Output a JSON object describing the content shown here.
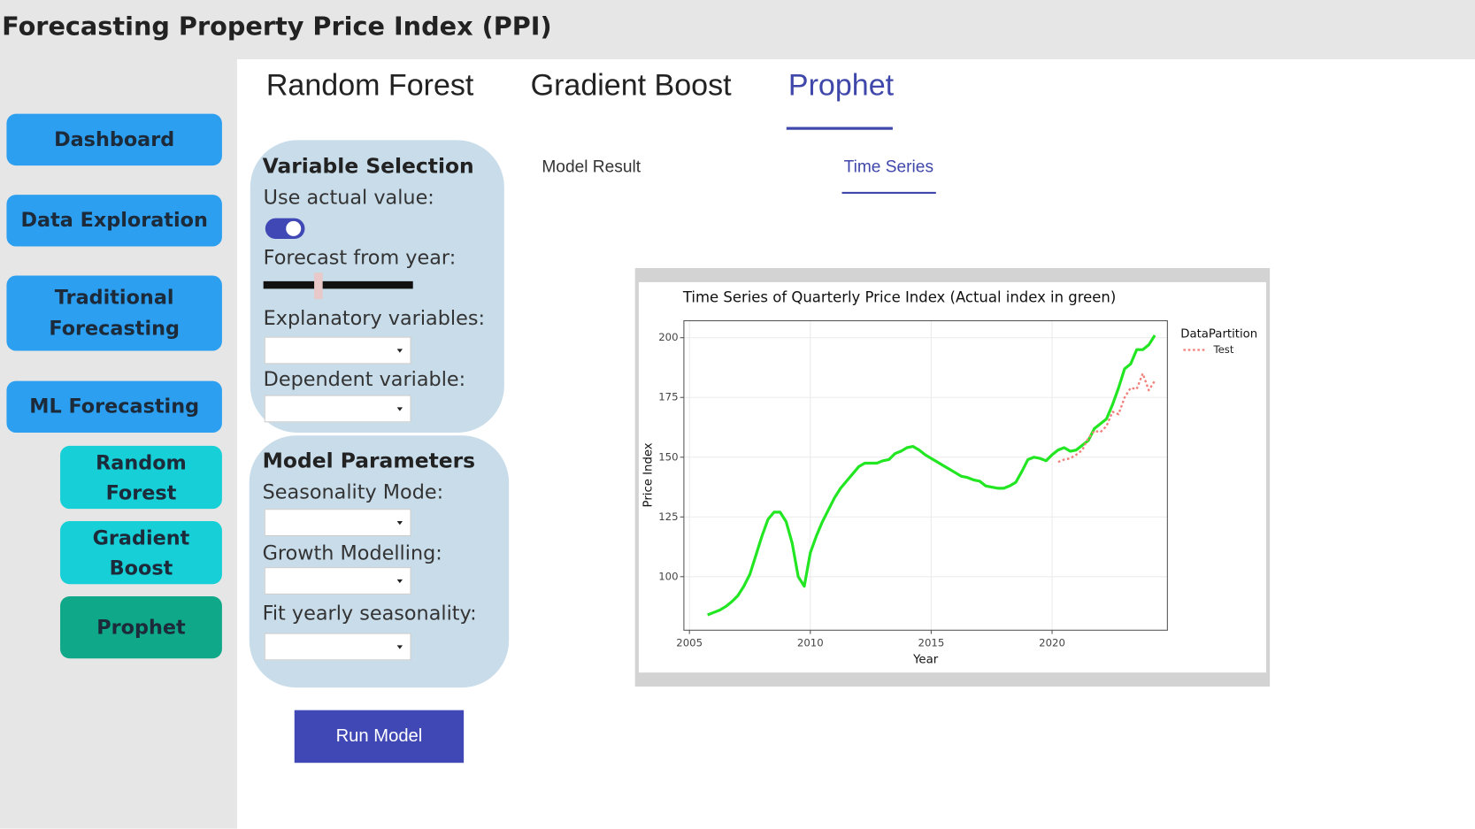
{
  "header": {
    "title": "Forecasting Property Price Index (PPI)"
  },
  "sidebar": {
    "buttons": [
      "Dashboard",
      "Data Exploration",
      "Traditional Forecasting",
      "ML Forecasting"
    ],
    "sub_buttons": [
      "Random Forest",
      "Gradient Boost",
      "Prophet"
    ]
  },
  "tabs": [
    "Random Forest",
    "Gradient Boost",
    "Prophet"
  ],
  "variable_selection": {
    "title": "Variable Selection",
    "labels": [
      "Use actual value:",
      "Forecast from year:",
      "Explanatory variables:",
      "Dependent variable:"
    ]
  },
  "model_parameters": {
    "title": "Model Parameters",
    "labels": [
      "Seasonality Mode:",
      "Growth Modelling:",
      "Fit yearly seasonality:"
    ]
  },
  "run_button": "Run Model",
  "subtabs": [
    "Model Result",
    "Time Series"
  ],
  "chart_data": {
    "type": "line",
    "title": "Time Series of Quarterly Price Index (Actual index in green)",
    "xlabel": "Year",
    "ylabel": "Price Index",
    "legend_title": "DataPartition",
    "grid": true,
    "xlim": [
      2004.77,
      2024.77
    ],
    "ylim": [
      77.6,
      207.1
    ],
    "xticks": [
      2005,
      2010,
      2015,
      2020
    ],
    "yticks": [
      100,
      125,
      150,
      175,
      200
    ],
    "x": [
      2005.75,
      2006,
      2006.25,
      2006.5,
      2006.75,
      2007,
      2007.25,
      2007.5,
      2007.75,
      2008,
      2008.25,
      2008.5,
      2008.75,
      2009,
      2009.25,
      2009.5,
      2009.75,
      2010,
      2010.25,
      2010.5,
      2010.75,
      2011,
      2011.25,
      2011.5,
      2011.75,
      2012,
      2012.25,
      2012.5,
      2012.75,
      2013,
      2013.25,
      2013.5,
      2013.75,
      2014,
      2014.25,
      2014.5,
      2014.75,
      2015,
      2015.25,
      2015.5,
      2015.75,
      2016,
      2016.25,
      2016.5,
      2016.75,
      2017,
      2017.25,
      2017.5,
      2017.75,
      2018,
      2018.25,
      2018.5,
      2018.75,
      2019,
      2019.25,
      2019.5,
      2019.75,
      2020,
      2020.25,
      2020.5,
      2020.75,
      2021,
      2021.25,
      2021.5,
      2021.75,
      2022,
      2022.25,
      2022.5,
      2022.75,
      2023,
      2023.25,
      2023.5,
      2023.75,
      2024,
      2024.25
    ],
    "series": [
      {
        "color": "#22e622",
        "values": [
          84,
          85,
          86,
          87.5,
          89.5,
          92,
          96,
          101,
          109,
          117,
          124,
          127,
          127,
          123,
          114,
          100,
          96,
          110,
          117,
          123,
          128,
          133,
          137,
          140,
          143,
          146,
          147.5,
          147.5,
          147.5,
          148.5,
          149,
          151.5,
          152.5,
          154,
          154.5,
          153,
          151,
          149.5,
          148,
          146.5,
          145,
          143.5,
          142,
          141.5,
          140.5,
          140,
          138,
          137.5,
          137,
          137,
          138,
          139.5,
          144,
          149,
          150,
          149.5,
          148.5,
          151,
          153,
          154,
          152.5,
          153,
          155,
          157,
          162,
          164,
          166,
          172,
          179,
          187,
          189,
          195,
          195,
          197,
          201
        ]
      },
      {
        "name": "Test",
        "color": "#f07f7a",
        "dashed": true,
        "values": [
          null,
          null,
          null,
          null,
          null,
          null,
          null,
          null,
          null,
          null,
          null,
          null,
          null,
          null,
          null,
          null,
          null,
          null,
          null,
          null,
          null,
          null,
          null,
          null,
          null,
          null,
          null,
          null,
          null,
          null,
          null,
          null,
          null,
          null,
          null,
          null,
          null,
          null,
          null,
          null,
          null,
          null,
          null,
          null,
          null,
          null,
          null,
          null,
          null,
          null,
          null,
          null,
          null,
          null,
          null,
          null,
          null,
          null,
          148,
          149,
          149.5,
          151,
          153,
          158,
          161,
          160.5,
          163,
          169,
          168,
          175,
          179,
          178.5,
          185,
          178,
          182
        ]
      }
    ]
  }
}
